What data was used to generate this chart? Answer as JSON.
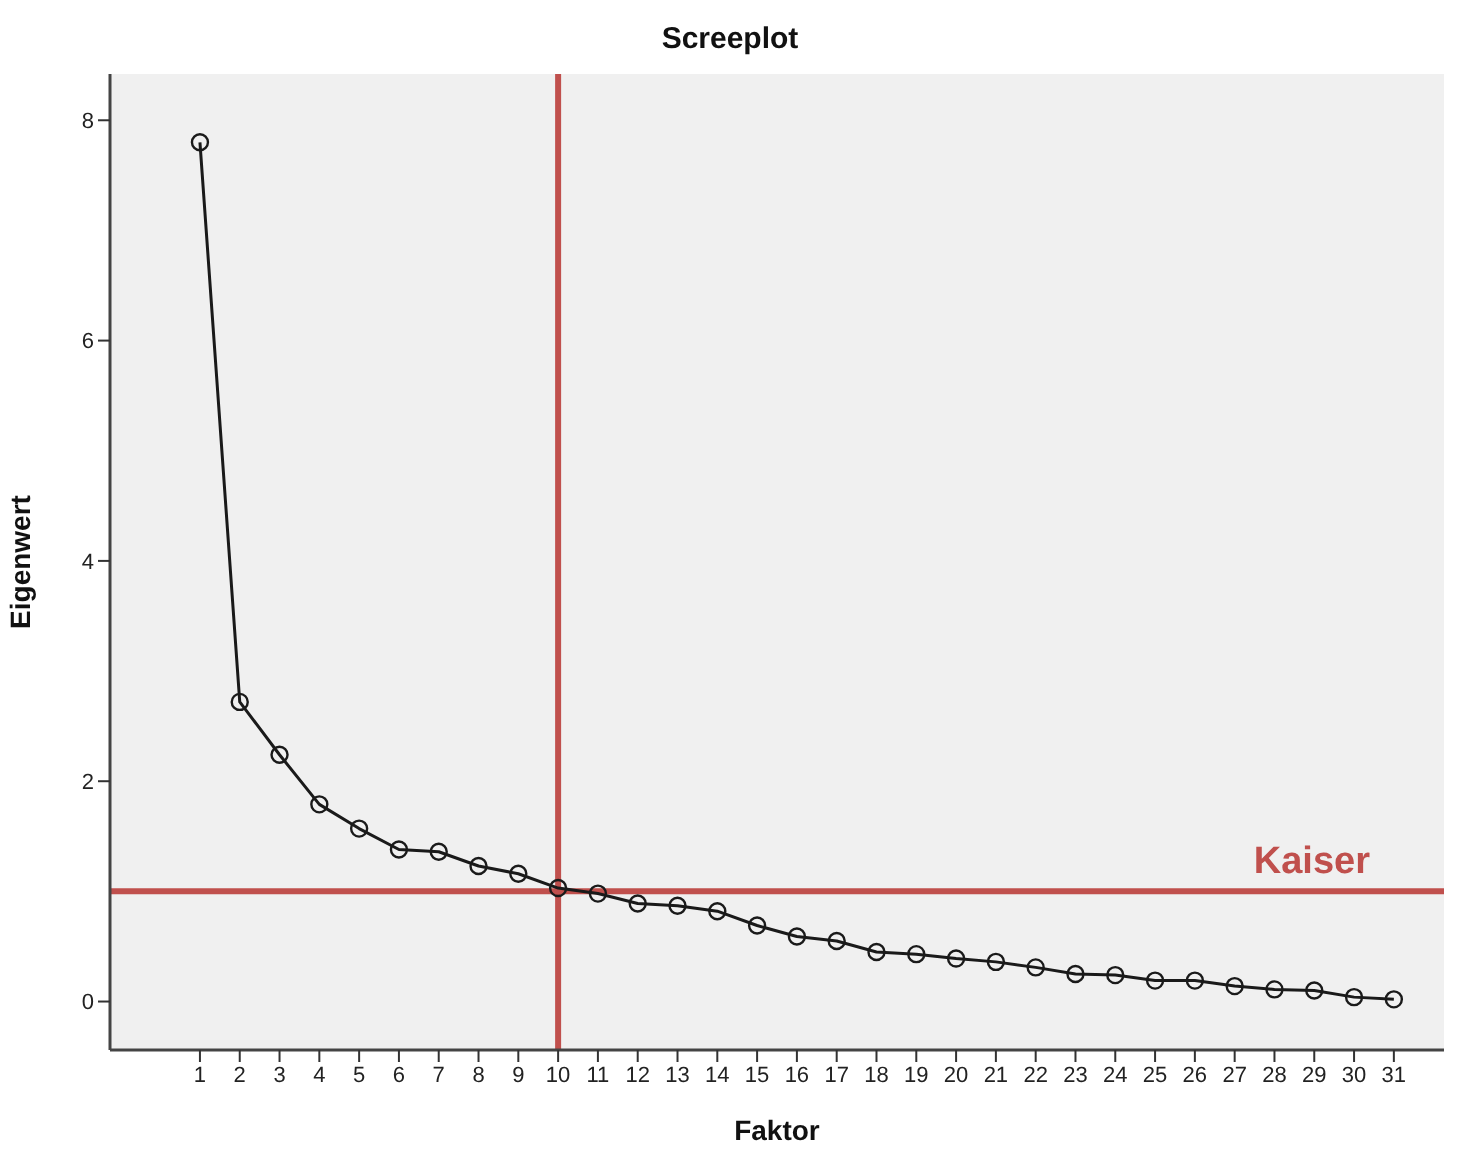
{
  "chart_data": {
    "type": "line",
    "title": "Screeplot",
    "xlabel": "Faktor",
    "ylabel": "Eigenwert",
    "x": [
      1,
      2,
      3,
      4,
      5,
      6,
      7,
      8,
      9,
      10,
      11,
      12,
      13,
      14,
      15,
      16,
      17,
      18,
      19,
      20,
      21,
      22,
      23,
      24,
      25,
      26,
      27,
      28,
      29,
      30,
      31
    ],
    "series": [
      {
        "color": "#1a1a1a",
        "values": [
          7.8,
          2.72,
          2.24,
          1.79,
          1.57,
          1.38,
          1.36,
          1.23,
          1.16,
          1.03,
          0.98,
          0.89,
          0.87,
          0.82,
          0.69,
          0.59,
          0.55,
          0.45,
          0.43,
          0.39,
          0.36,
          0.31,
          0.25,
          0.24,
          0.19,
          0.19,
          0.14,
          0.11,
          0.1,
          0.04,
          0.02
        ]
      }
    ],
    "xlim": [
      -1.26,
      32.26
    ],
    "xticks": [
      1,
      2,
      3,
      4,
      5,
      6,
      7,
      8,
      9,
      10,
      11,
      12,
      13,
      14,
      15,
      16,
      17,
      18,
      19,
      20,
      21,
      22,
      23,
      24,
      25,
      26,
      27,
      28,
      29,
      30,
      31
    ],
    "ylim": [
      -0.44,
      8.42
    ],
    "yticks": [
      0,
      2,
      4,
      6,
      8
    ],
    "grid": false,
    "marker": "circle",
    "line_style": "solid",
    "ref_lines": [
      {
        "axis": "x",
        "value": 10,
        "color": "#c0504d"
      },
      {
        "axis": "y",
        "value": 1,
        "label": "Kaiser",
        "color": "#c0504d"
      }
    ]
  }
}
